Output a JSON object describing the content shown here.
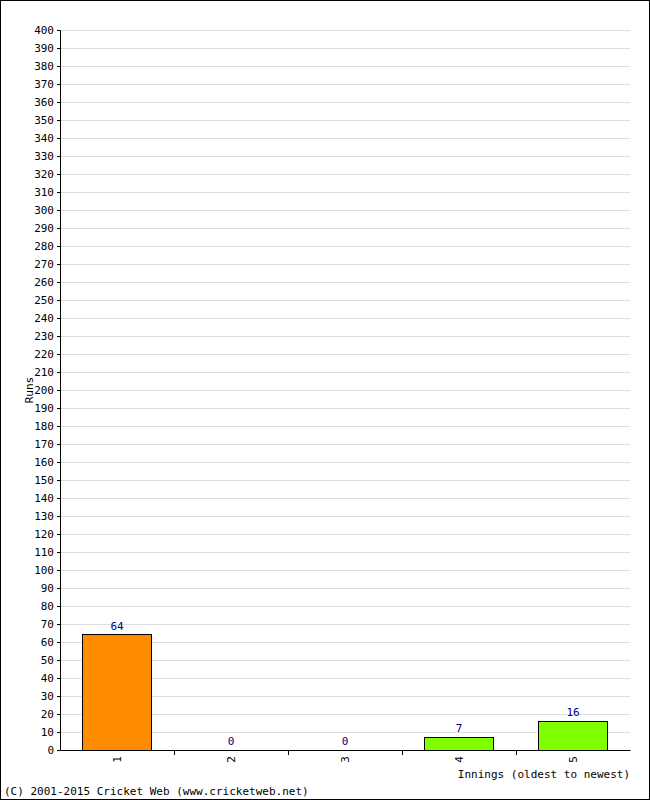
{
  "chart_data": {
    "type": "bar",
    "x_label": "Innings (oldest to newest)",
    "y_label": "Runs",
    "annotations": [
      "(C) 2001-2015 Cricket Web (www.cricketweb.net)"
    ],
    "categories": [
      "1",
      "2",
      "3",
      "4",
      "5"
    ],
    "values": [
      64,
      0,
      0,
      7,
      16
    ],
    "colors": [
      "#ff8c00",
      "#7fff00",
      "#7fff00",
      "#7fff00",
      "#7fff00"
    ],
    "ylim": [
      0,
      400
    ],
    "yticks": [
      0,
      10,
      20,
      30,
      40,
      50,
      60,
      70,
      80,
      90,
      100,
      110,
      120,
      130,
      140,
      150,
      160,
      170,
      180,
      190,
      200,
      210,
      220,
      230,
      240,
      250,
      260,
      270,
      280,
      290,
      300,
      310,
      320,
      330,
      340,
      350,
      360,
      370,
      380,
      390,
      400
    ],
    "grid": true,
    "data_labels": true
  }
}
